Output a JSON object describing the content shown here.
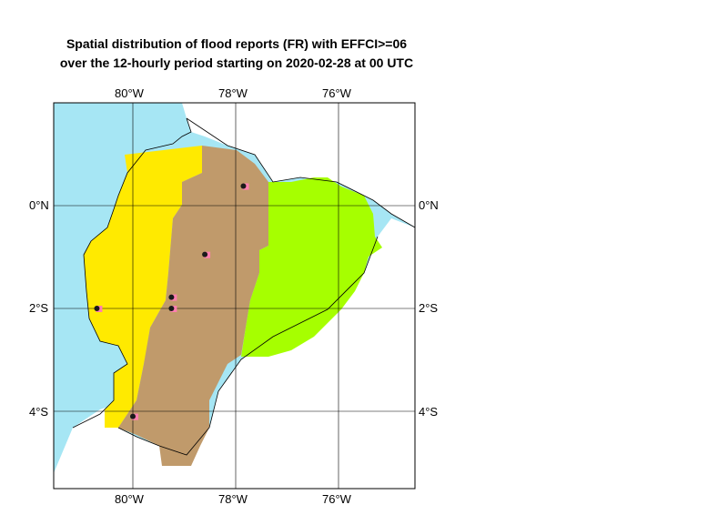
{
  "title": {
    "line1": "Spatial distribution of flood reports (FR) with EFFCI>=06",
    "line2": "over the 12-hourly period starting on 2020-02-28 at 00 UTC"
  },
  "axes": {
    "lon_labels": [
      "80°W",
      "78°W",
      "76°W"
    ],
    "lat_labels": [
      "0°N",
      "2°S",
      "4°S"
    ]
  },
  "colors": {
    "sea": "#a6e6f4",
    "land": "#ffffff",
    "coastal_region": "#ffea00",
    "highland_region": "#c09a6b",
    "amazon_region": "#a6ff00",
    "report_marker": "#ff7fb0",
    "report_dot": "#1a1a1a",
    "grid": "#000000"
  },
  "flood_reports": [
    {
      "lon": -77.85,
      "lat": 0.38
    },
    {
      "lon": -78.6,
      "lat": -0.95
    },
    {
      "lon": -79.25,
      "lat": -1.78
    },
    {
      "lon": -79.25,
      "lat": -2.0
    },
    {
      "lon": -80.7,
      "lat": -2.0
    },
    {
      "lon": -80.0,
      "lat": -4.1
    }
  ]
}
